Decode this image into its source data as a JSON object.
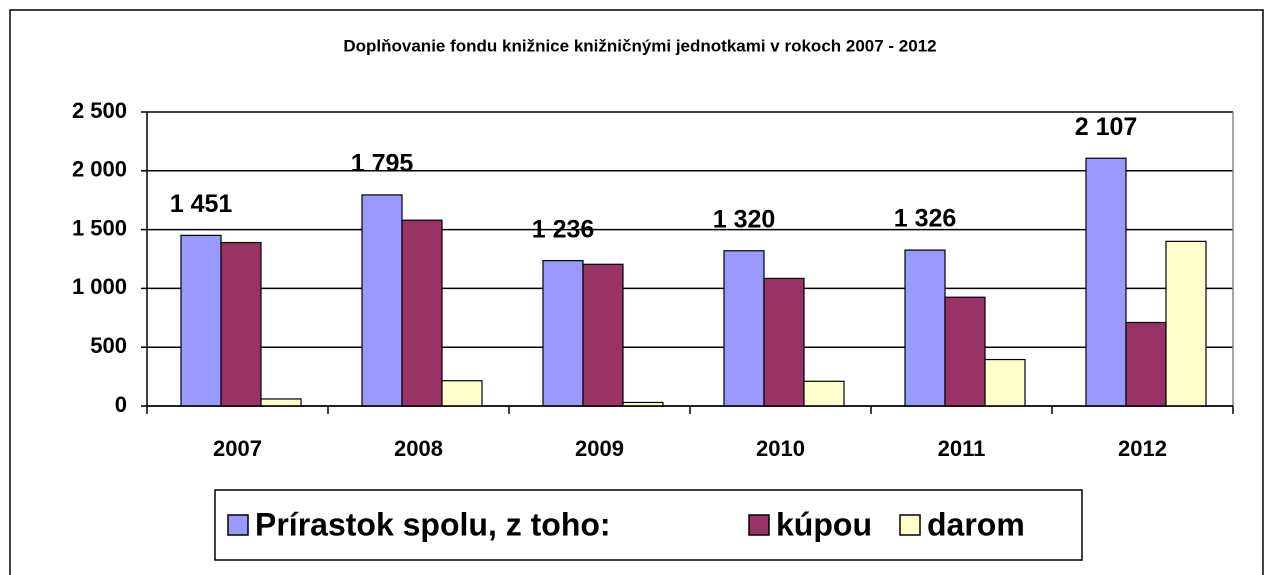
{
  "chart_data": {
    "type": "bar",
    "title": "Doplňovanie fondu knižnice  knižničnými jednotkami v rokoch 2007 - 2012",
    "categories": [
      "2007",
      "2008",
      "2009",
      "2010",
      "2011",
      "2012"
    ],
    "series": [
      {
        "name": "Prírastok spolu, z toho:",
        "color": "#9999ff",
        "values": [
          1451,
          1795,
          1236,
          1320,
          1326,
          2107
        ],
        "value_labels": [
          "1 451",
          "1 795",
          "1 236",
          "1 320",
          "1 326",
          "2 107"
        ]
      },
      {
        "name": "kúpou",
        "color": "#993366",
        "values": [
          1390,
          1580,
          1205,
          1085,
          925,
          710
        ]
      },
      {
        "name": "darom",
        "color": "#ffffcc",
        "values": [
          60,
          215,
          30,
          210,
          395,
          1400
        ]
      }
    ],
    "ylim": [
      0,
      2500
    ],
    "yticks": [
      0,
      500,
      {
        "value": 1000,
        "label": "1 000"
      },
      {
        "value": 1500,
        "label": "1 500"
      },
      {
        "value": 2000,
        "label": "2 000"
      },
      {
        "value": 2500,
        "label": "2 500"
      }
    ],
    "grid": true,
    "legend": "bottom"
  }
}
